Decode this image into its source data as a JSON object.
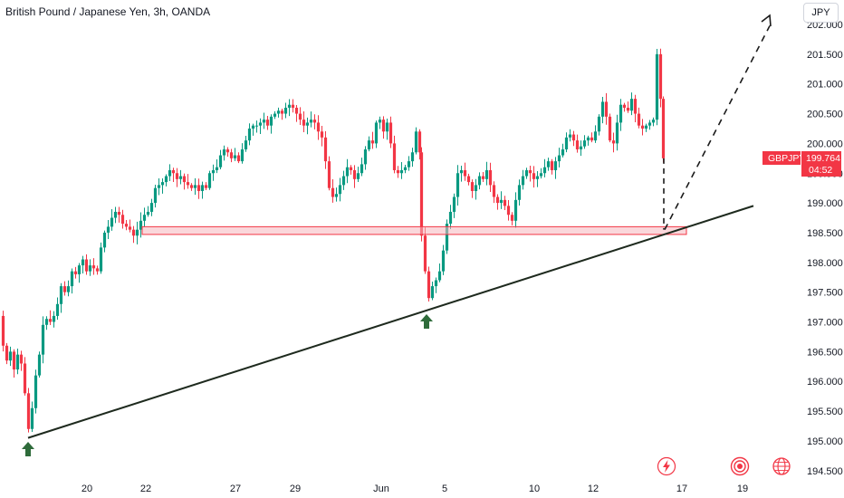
{
  "header": {
    "title": "British Pound / Japanese Yen, 3h, OANDA",
    "currency_button": "JPY"
  },
  "symbol_tag": {
    "symbol": "GBPJPY",
    "last_price": "199.764",
    "countdown": "04:52",
    "color": "#f23645"
  },
  "colors": {
    "up": "#089981",
    "down": "#f23645",
    "trendline": "#1e2a1e",
    "zone_fill": "#f5b7bd",
    "zone_border": "#f23645",
    "arrow": "#2e6b3a"
  },
  "icons": [
    "lightning-icon",
    "record-icon",
    "globe-icon"
  ],
  "chart_data": {
    "type": "candlestick",
    "title": "British Pound / Japanese Yen, 3h, OANDA",
    "xlabel": "",
    "ylabel": "",
    "x_tick_labels": [
      "20",
      "22",
      "27",
      "29",
      "Jun",
      "5",
      "10",
      "12",
      "17",
      "19"
    ],
    "y_tick_labels": [
      "194.500",
      "195.000",
      "195.500",
      "196.000",
      "196.500",
      "197.000",
      "197.500",
      "198.000",
      "198.500",
      "199.000",
      "199.500",
      "200.000",
      "200.500",
      "201.000",
      "201.500",
      "202.000"
    ],
    "ylim": [
      194.4,
      202.2
    ],
    "grid": false,
    "price_path": [
      [
        0,
        197.1
      ],
      [
        4,
        196.6
      ],
      [
        8,
        196.35
      ],
      [
        12,
        196.5
      ],
      [
        16,
        196.2
      ],
      [
        20,
        196.45
      ],
      [
        24,
        196.3
      ],
      [
        28,
        195.8
      ],
      [
        32,
        195.2
      ],
      [
        36,
        195.55
      ],
      [
        40,
        196.1
      ],
      [
        44,
        196.45
      ],
      [
        48,
        196.95
      ],
      [
        52,
        197.05
      ],
      [
        56,
        197.0
      ],
      [
        60,
        197.1
      ],
      [
        64,
        197.3
      ],
      [
        68,
        197.6
      ],
      [
        72,
        197.5
      ],
      [
        76,
        197.6
      ],
      [
        80,
        197.85
      ],
      [
        84,
        197.8
      ],
      [
        88,
        197.95
      ],
      [
        92,
        198.05
      ],
      [
        96,
        197.85
      ],
      [
        100,
        197.95
      ],
      [
        104,
        197.9
      ],
      [
        108,
        197.85
      ],
      [
        112,
        198.25
      ],
      [
        116,
        198.5
      ],
      [
        120,
        198.6
      ],
      [
        124,
        198.75
      ],
      [
        128,
        198.85
      ],
      [
        132,
        198.8
      ],
      [
        136,
        198.65
      ],
      [
        140,
        198.6
      ],
      [
        144,
        198.55
      ],
      [
        148,
        198.45
      ],
      [
        152,
        198.55
      ],
      [
        156,
        198.7
      ],
      [
        160,
        198.8
      ],
      [
        164,
        198.85
      ],
      [
        168,
        199.0
      ],
      [
        172,
        199.25
      ],
      [
        176,
        199.3
      ],
      [
        180,
        199.35
      ],
      [
        184,
        199.45
      ],
      [
        188,
        199.55
      ],
      [
        192,
        199.5
      ],
      [
        196,
        199.4
      ],
      [
        200,
        199.45
      ],
      [
        204,
        199.35
      ],
      [
        208,
        199.3
      ],
      [
        212,
        199.25
      ],
      [
        216,
        199.3
      ],
      [
        220,
        199.2
      ],
      [
        224,
        199.3
      ],
      [
        228,
        199.25
      ],
      [
        232,
        199.5
      ],
      [
        236,
        199.55
      ],
      [
        240,
        199.6
      ],
      [
        244,
        199.8
      ],
      [
        248,
        199.9
      ],
      [
        252,
        199.85
      ],
      [
        256,
        199.75
      ],
      [
        260,
        199.8
      ],
      [
        264,
        199.7
      ],
      [
        268,
        199.9
      ],
      [
        272,
        200.05
      ],
      [
        276,
        200.25
      ],
      [
        280,
        200.3
      ],
      [
        284,
        200.3
      ],
      [
        288,
        200.35
      ],
      [
        292,
        200.4
      ],
      [
        296,
        200.3
      ],
      [
        300,
        200.45
      ],
      [
        304,
        200.5
      ],
      [
        308,
        200.55
      ],
      [
        312,
        200.5
      ],
      [
        316,
        200.6
      ],
      [
        320,
        200.65
      ],
      [
        324,
        200.6
      ],
      [
        328,
        200.5
      ],
      [
        332,
        200.4
      ],
      [
        336,
        200.3
      ],
      [
        340,
        200.35
      ],
      [
        344,
        200.4
      ],
      [
        348,
        200.35
      ],
      [
        352,
        200.2
      ],
      [
        356,
        200.1
      ],
      [
        360,
        199.7
      ],
      [
        364,
        199.25
      ],
      [
        368,
        199.1
      ],
      [
        372,
        199.15
      ],
      [
        376,
        199.3
      ],
      [
        380,
        199.45
      ],
      [
        384,
        199.6
      ],
      [
        388,
        199.55
      ],
      [
        392,
        199.4
      ],
      [
        396,
        199.5
      ],
      [
        400,
        199.65
      ],
      [
        404,
        199.9
      ],
      [
        408,
        200.05
      ],
      [
        412,
        200.0
      ],
      [
        416,
        200.35
      ],
      [
        420,
        200.4
      ],
      [
        424,
        200.2
      ],
      [
        428,
        200.35
      ],
      [
        432,
        200.0
      ],
      [
        436,
        199.55
      ],
      [
        440,
        199.5
      ],
      [
        444,
        199.55
      ],
      [
        448,
        199.6
      ],
      [
        452,
        199.7
      ],
      [
        456,
        199.85
      ],
      [
        460,
        200.2
      ],
      [
        464,
        199.85
      ],
      [
        466,
        198.45
      ],
      [
        470,
        197.85
      ],
      [
        474,
        197.4
      ],
      [
        478,
        197.6
      ],
      [
        482,
        197.7
      ],
      [
        486,
        197.85
      ],
      [
        490,
        198.2
      ],
      [
        494,
        198.65
      ],
      [
        498,
        198.85
      ],
      [
        502,
        199.1
      ],
      [
        506,
        199.5
      ],
      [
        510,
        199.55
      ],
      [
        514,
        199.45
      ],
      [
        518,
        199.35
      ],
      [
        522,
        199.2
      ],
      [
        526,
        199.3
      ],
      [
        530,
        199.45
      ],
      [
        534,
        199.4
      ],
      [
        538,
        199.55
      ],
      [
        542,
        199.3
      ],
      [
        546,
        199.1
      ],
      [
        550,
        199.0
      ],
      [
        554,
        199.05
      ],
      [
        558,
        198.95
      ],
      [
        562,
        198.8
      ],
      [
        566,
        198.7
      ],
      [
        570,
        199.05
      ],
      [
        574,
        199.3
      ],
      [
        578,
        199.45
      ],
      [
        582,
        199.55
      ],
      [
        586,
        199.5
      ],
      [
        590,
        199.4
      ],
      [
        594,
        199.45
      ],
      [
        598,
        199.5
      ],
      [
        602,
        199.6
      ],
      [
        606,
        199.7
      ],
      [
        610,
        199.55
      ],
      [
        614,
        199.7
      ],
      [
        618,
        199.8
      ],
      [
        622,
        199.9
      ],
      [
        626,
        200.1
      ],
      [
        630,
        200.15
      ],
      [
        634,
        200.05
      ],
      [
        638,
        199.9
      ],
      [
        642,
        199.95
      ],
      [
        646,
        200.05
      ],
      [
        650,
        200.1
      ],
      [
        654,
        200.05
      ],
      [
        658,
        200.2
      ],
      [
        662,
        200.45
      ],
      [
        666,
        200.7
      ],
      [
        670,
        200.45
      ],
      [
        674,
        200.05
      ],
      [
        678,
        200.0
      ],
      [
        682,
        200.35
      ],
      [
        686,
        200.65
      ],
      [
        690,
        200.6
      ],
      [
        694,
        200.55
      ],
      [
        698,
        200.75
      ],
      [
        702,
        200.5
      ],
      [
        706,
        200.3
      ],
      [
        710,
        200.25
      ],
      [
        714,
        200.3
      ],
      [
        718,
        200.35
      ],
      [
        722,
        200.4
      ],
      [
        726,
        201.5
      ],
      [
        730,
        200.75
      ],
      [
        733,
        199.75
      ]
    ],
    "resistance_zone": {
      "from": 198.47,
      "to": 198.6
    },
    "trendline": {
      "start_price": 195.05,
      "end_price": 198.95
    },
    "projection_end_price": 202.1
  }
}
